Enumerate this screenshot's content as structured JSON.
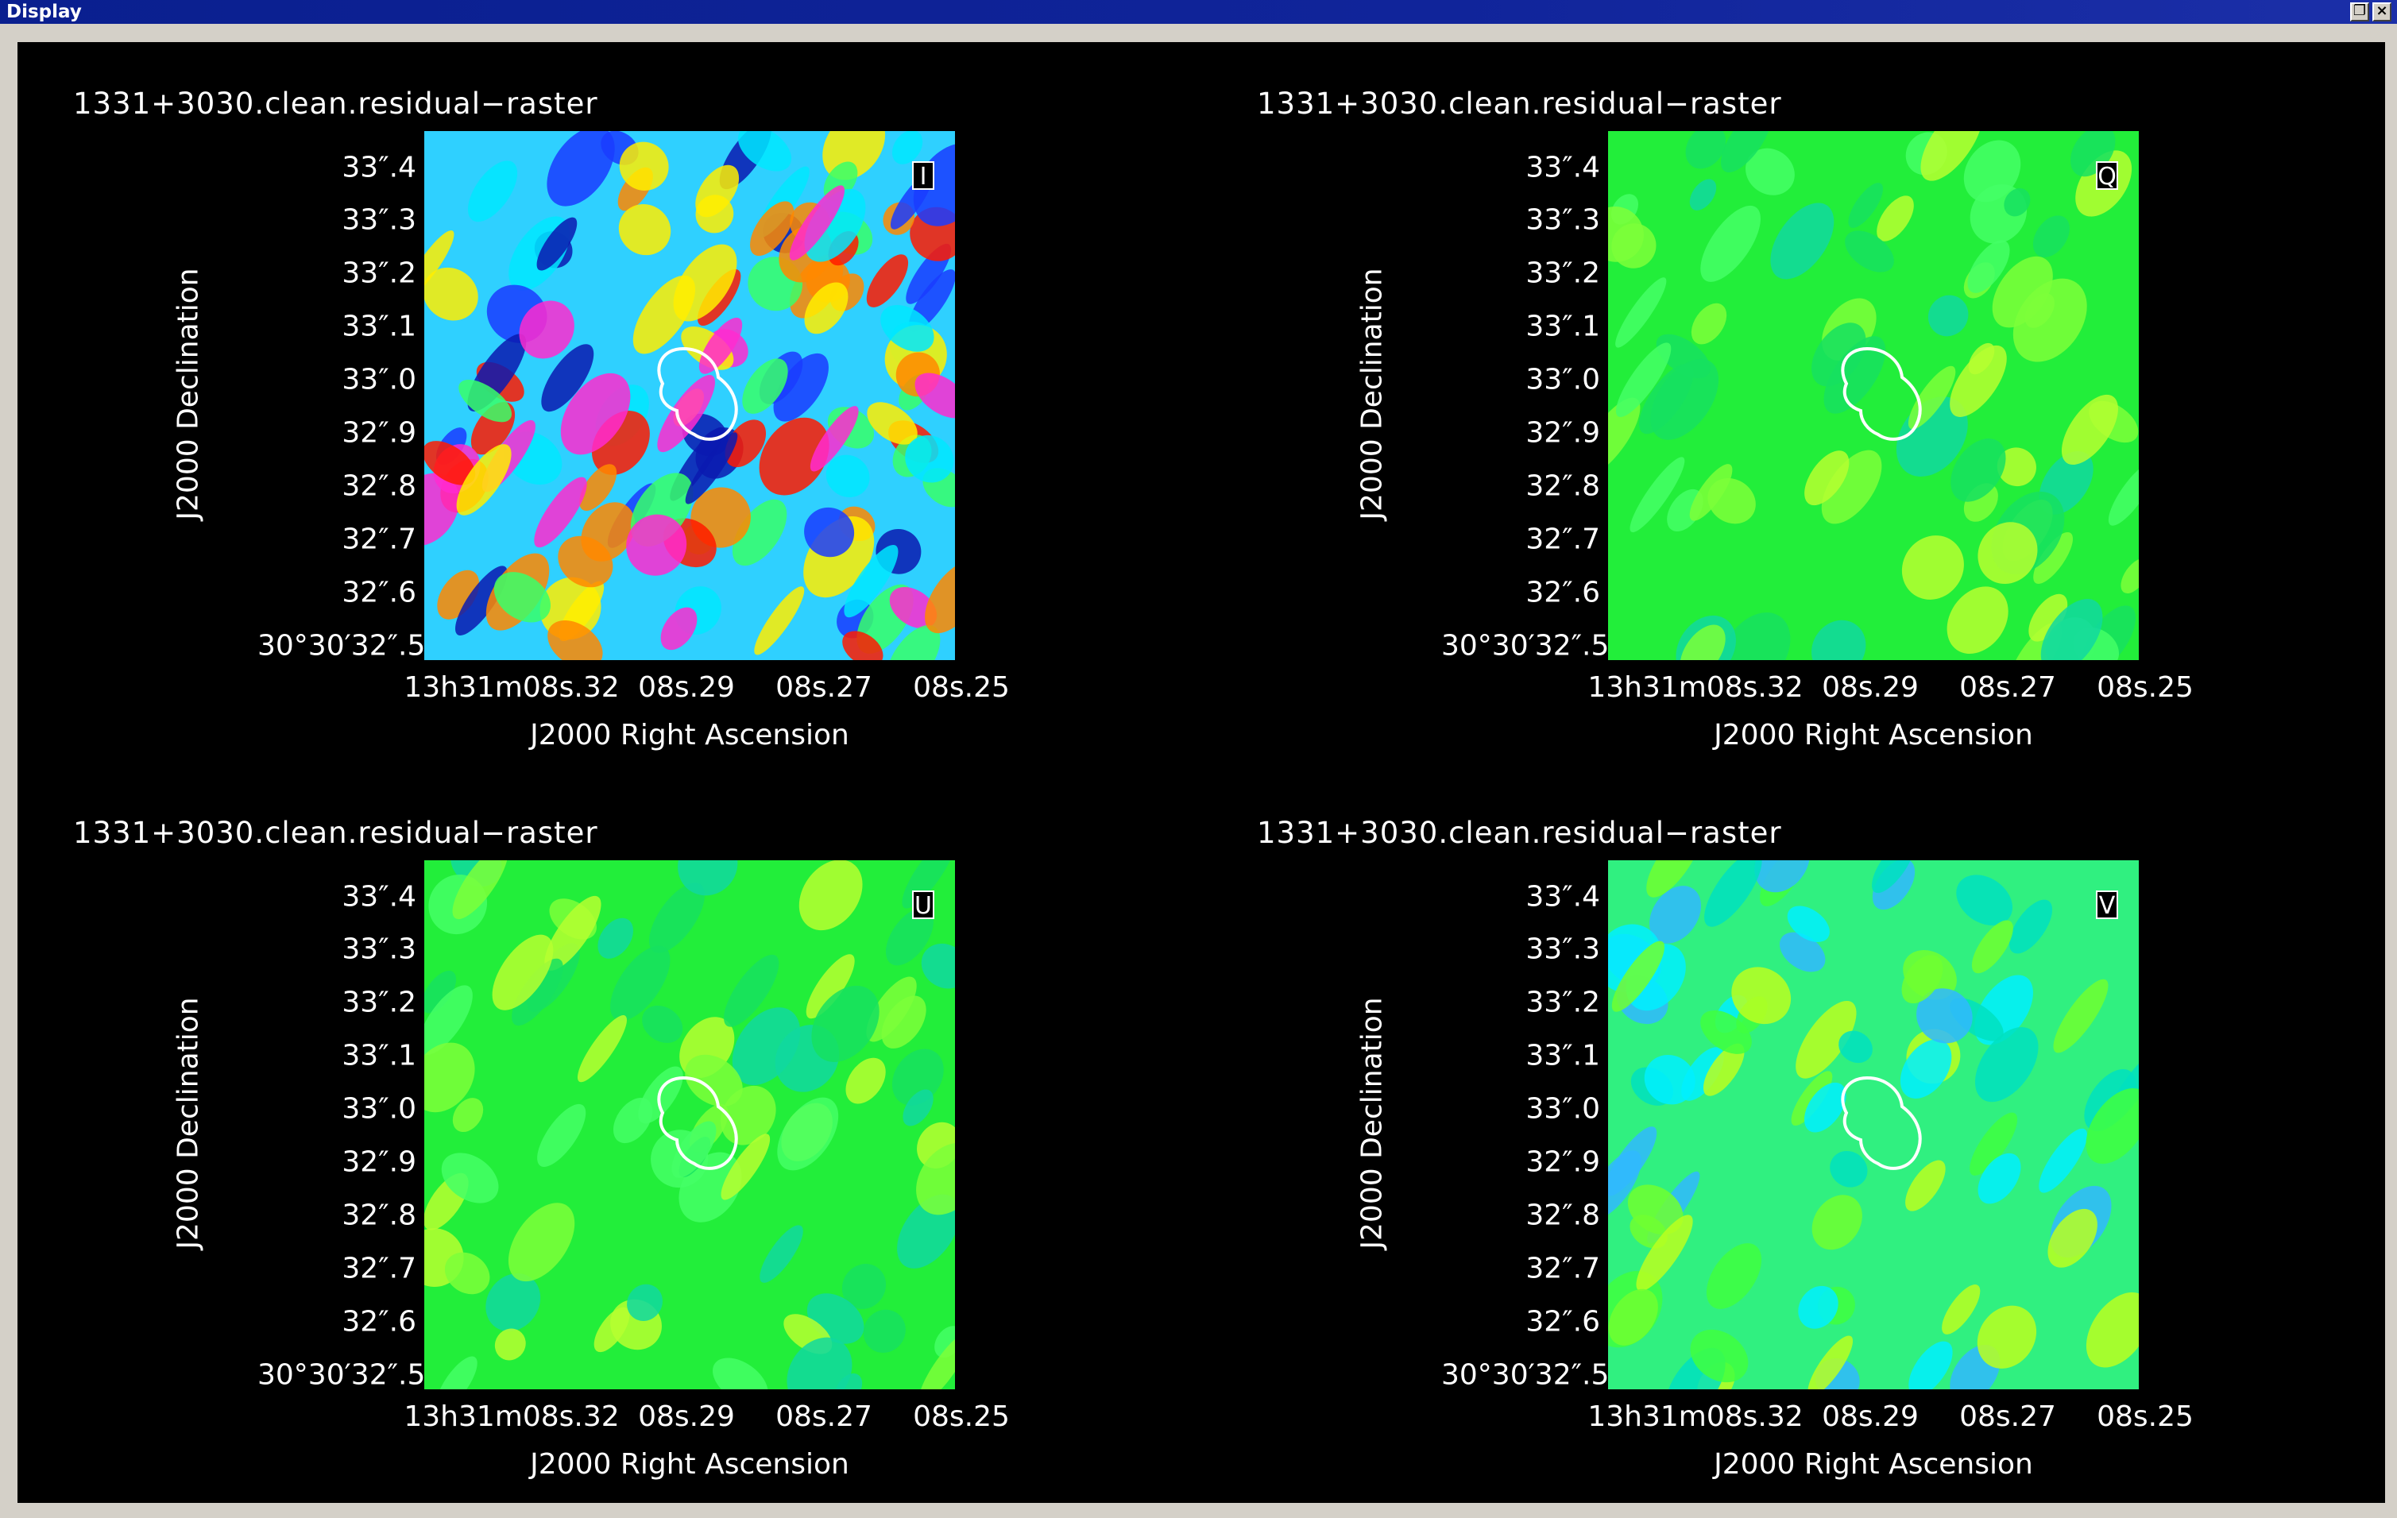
{
  "window": {
    "title": "Display"
  },
  "panels": [
    {
      "title": "1331+3030.clean.residual−raster",
      "stokes": "I",
      "colormap": "rainbow-high"
    },
    {
      "title": "1331+3030.clean.residual−raster",
      "stokes": "Q",
      "colormap": "green-low"
    },
    {
      "title": "1331+3030.clean.residual−raster",
      "stokes": "U",
      "colormap": "green-low"
    },
    {
      "title": "1331+3030.clean.residual−raster",
      "stokes": "V",
      "colormap": "green-mid"
    }
  ],
  "axes": {
    "ylabel": "J2000 Declination",
    "xlabel": "J2000 Right Ascension",
    "yticks": [
      "33″.4",
      "33″.3",
      "33″.2",
      "33″.1",
      "33″.0",
      "32″.9",
      "32″.8",
      "32″.7",
      "32″.6",
      "30°30′32″.5"
    ],
    "xticks": [
      "13h31m08s.32",
      "08s.29",
      "08s.27",
      "08s.25"
    ]
  },
  "colors": {
    "canvas": "#000000",
    "titlebar": "#0a1f8f",
    "contour": "#ffffff"
  }
}
